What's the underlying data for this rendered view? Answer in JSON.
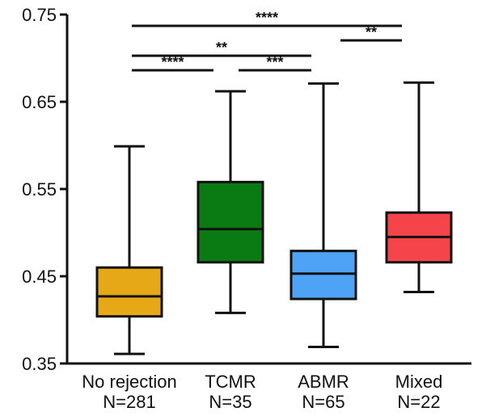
{
  "chart_data": {
    "type": "box",
    "title": "",
    "xlabel": "",
    "ylabel": "",
    "ylim": [
      0.35,
      0.75
    ],
    "yticks": [
      {
        "value": 0.35,
        "label": "0.35"
      },
      {
        "value": 0.45,
        "label": "0.45"
      },
      {
        "value": 0.55,
        "label": "0.55"
      },
      {
        "value": 0.65,
        "label": "0.65"
      },
      {
        "value": 0.75,
        "label": "0.75"
      }
    ],
    "categories": [
      {
        "name": "No rejection",
        "n_label": "N=281",
        "color": "#E6A817",
        "min": 0.361,
        "q1": 0.404,
        "median": 0.427,
        "q3": 0.46,
        "max": 0.599
      },
      {
        "name": "TCMR",
        "n_label": "N=35",
        "color": "#0A7A12",
        "min": 0.408,
        "q1": 0.466,
        "median": 0.504,
        "q3": 0.558,
        "max": 0.662
      },
      {
        "name": "ABMR",
        "n_label": "N=65",
        "color": "#4FA3F7",
        "min": 0.369,
        "q1": 0.424,
        "median": 0.453,
        "q3": 0.479,
        "max": 0.671
      },
      {
        "name": "Mixed",
        "n_label": "N=22",
        "color": "#F5454A",
        "min": 0.432,
        "q1": 0.466,
        "median": 0.495,
        "q3": 0.523,
        "max": 0.672
      }
    ],
    "significance": [
      {
        "from": 0,
        "to": 3,
        "label": "****"
      },
      {
        "from": 2,
        "to": 3,
        "label": "**"
      },
      {
        "from": 0,
        "to": 2,
        "label": "**"
      },
      {
        "from": 0,
        "to": 1,
        "label": "****"
      },
      {
        "from": 1,
        "to": 2,
        "label": "***"
      }
    ]
  }
}
